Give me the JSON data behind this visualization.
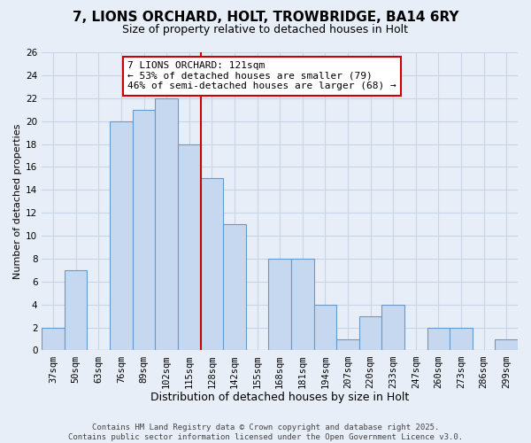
{
  "title": "7, LIONS ORCHARD, HOLT, TROWBRIDGE, BA14 6RY",
  "subtitle": "Size of property relative to detached houses in Holt",
  "xlabel": "Distribution of detached houses by size in Holt",
  "ylabel": "Number of detached properties",
  "categories": [
    "37sqm",
    "50sqm",
    "63sqm",
    "76sqm",
    "89sqm",
    "102sqm",
    "115sqm",
    "128sqm",
    "142sqm",
    "155sqm",
    "168sqm",
    "181sqm",
    "194sqm",
    "207sqm",
    "220sqm",
    "233sqm",
    "247sqm",
    "260sqm",
    "273sqm",
    "286sqm",
    "299sqm"
  ],
  "values": [
    2,
    7,
    0,
    20,
    21,
    22,
    18,
    15,
    11,
    0,
    8,
    8,
    4,
    1,
    3,
    4,
    0,
    2,
    2,
    0,
    1
  ],
  "bar_color": "#c5d8f0",
  "bar_edge_color": "#6699cc",
  "vline_color": "#cc0000",
  "annotation_text": "7 LIONS ORCHARD: 121sqm\n← 53% of detached houses are smaller (79)\n46% of semi-detached houses are larger (68) →",
  "annotation_box_color": "#ffffff",
  "annotation_box_edge_color": "#cc0000",
  "ylim": [
    0,
    26
  ],
  "yticks": [
    0,
    2,
    4,
    6,
    8,
    10,
    12,
    14,
    16,
    18,
    20,
    22,
    24,
    26
  ],
  "background_color": "#e8eef8",
  "grid_color": "#c8d4e8",
  "footer_text": "Contains HM Land Registry data © Crown copyright and database right 2025.\nContains public sector information licensed under the Open Government Licence v3.0.",
  "title_fontsize": 11,
  "subtitle_fontsize": 9,
  "xlabel_fontsize": 9,
  "ylabel_fontsize": 8,
  "tick_fontsize": 7.5,
  "annotation_fontsize": 8,
  "footer_fontsize": 6.5
}
